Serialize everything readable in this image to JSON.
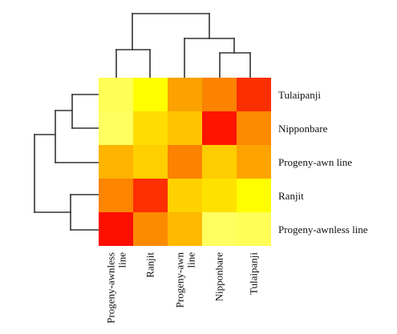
{
  "chart_data": {
    "type": "heatmap",
    "rows": [
      "Tulaipanji",
      "Nipponbare",
      "Progeny-awn line",
      "Ranjit",
      "Progeny-awnless line"
    ],
    "columns": [
      "Progeny-awnless line",
      "Ranjit",
      "Progeny-awn line",
      "Nipponbare",
      "Tulaipanji"
    ],
    "cell_colors": [
      [
        "#ffff55",
        "#ffff00",
        "#fba200",
        "#fb8300",
        "#fb2e00"
      ],
      [
        "#ffff60",
        "#ffdd00",
        "#ffc400",
        "#fd1500",
        "#fd8a00"
      ],
      [
        "#ffb400",
        "#ffcf00",
        "#fd8200",
        "#ffce00",
        "#ffa300"
      ],
      [
        "#fe8500",
        "#fe2f00",
        "#ffd100",
        "#ffe100",
        "#fefe00"
      ],
      [
        "#fd0f00",
        "#fd8b00",
        "#ffb900",
        "#ffff60",
        "#ffff58"
      ]
    ],
    "colormap": [
      "#fd0000",
      "#ff8c00",
      "#ffd000",
      "#ffff5c"
    ],
    "row_dendrogram": "((Tulaipanji,Nipponbare),Progeny-awn line),(Ranjit,Progeny-awnless line)",
    "column_dendrogram": "((Progeny-awnless line,Ranjit),(Progeny-awn line,(Nipponbare,Tulaipanji)))",
    "title": "",
    "legend": "none",
    "grid": false
  }
}
